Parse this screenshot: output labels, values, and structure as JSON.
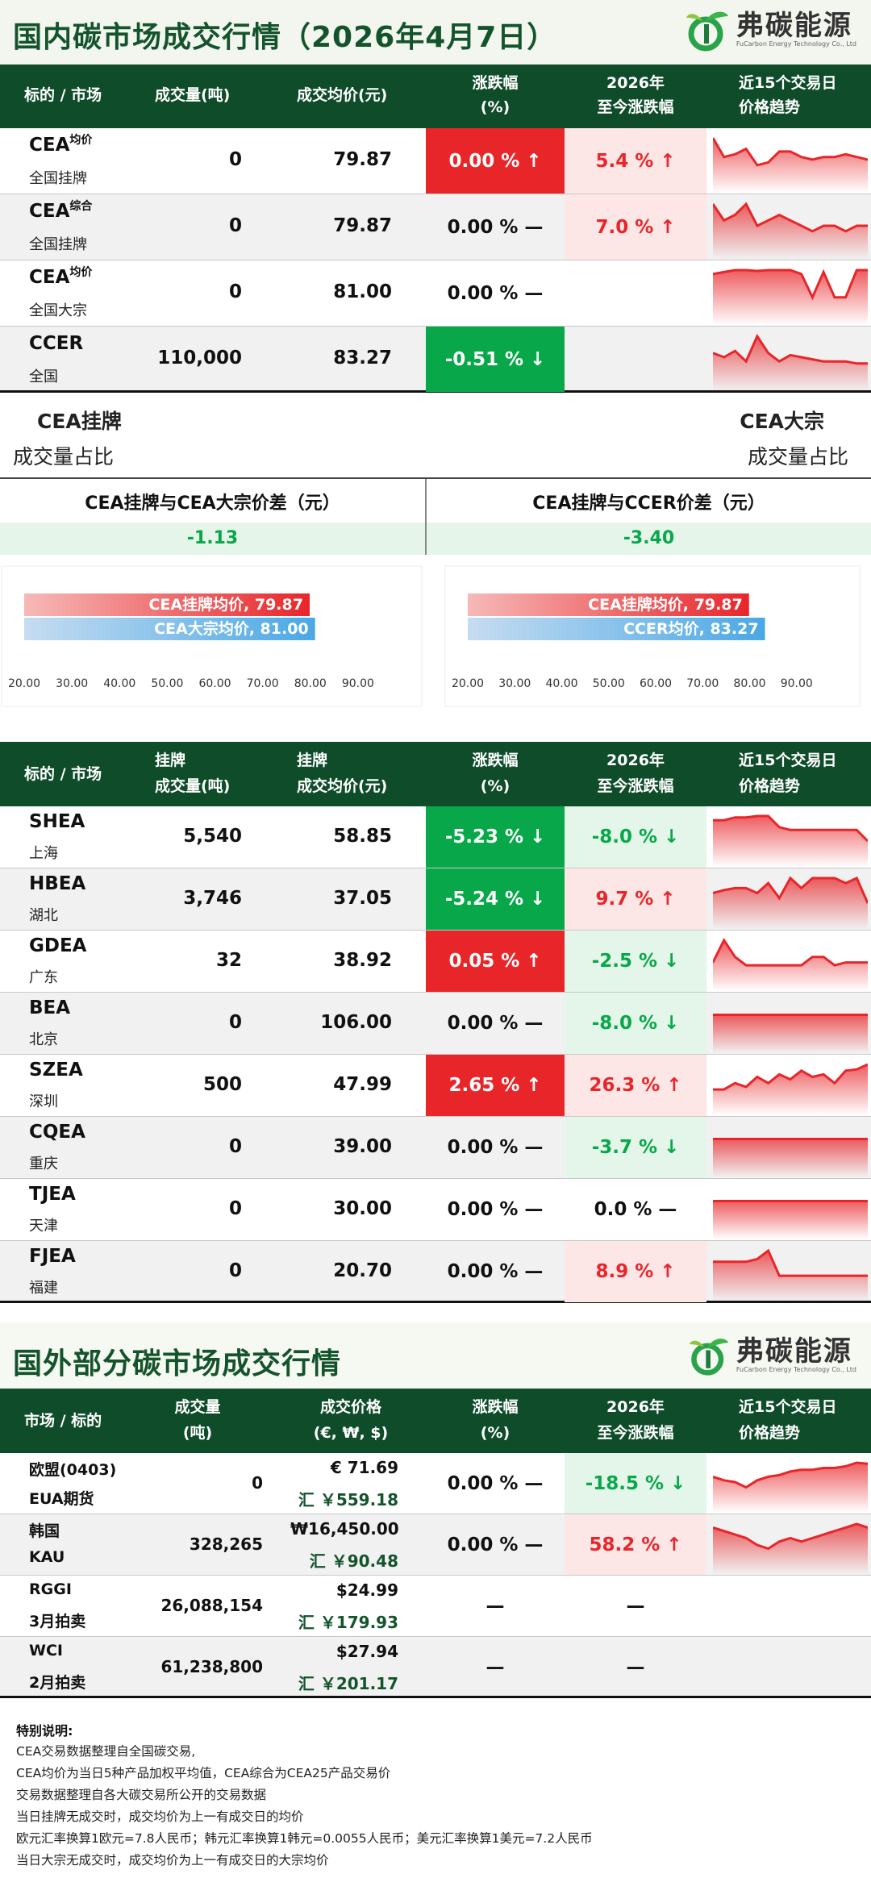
{
  "domestic": {
    "title": "国内碳市场成交行情（2026年4月7日）",
    "logo_name": "弗碳能源",
    "logo_sub": "FuCarbon Energy Technology Co., Ltd",
    "header": [
      "标的 / 市场",
      "成交量(吨)",
      "成交均价(元)",
      "涨跌幅",
      "(%)",
      "2026年",
      "至今涨跌幅",
      "近15个交易日",
      "价格趋势"
    ],
    "rows": [
      {
        "code": "CEA",
        "sup": "均价",
        "sub": "全国挂牌",
        "volume": "0",
        "price": "79.87",
        "change": "0.00 % ↑",
        "change_style": "red",
        "ytd": "5.4 % ↑",
        "ytd_style": "pink",
        "spark": [
          62,
          55,
          56,
          58,
          52,
          53,
          57,
          57,
          55,
          54,
          55,
          55,
          56,
          55,
          54
        ]
      },
      {
        "code": "CEA",
        "sup": "综合",
        "sub": "全国挂牌",
        "volume": "0",
        "price": "79.87",
        "change": "0.00 % —",
        "change_style": "none",
        "ytd": "7.0 % ↑",
        "ytd_style": "pink",
        "spark": [
          60,
          57,
          58,
          60,
          56,
          57,
          58,
          57,
          56,
          55,
          56,
          56,
          55,
          56,
          56
        ]
      },
      {
        "code": "CEA",
        "sup": "均价",
        "sub": "全国大宗",
        "volume": "0",
        "price": "81.00",
        "change": "0.00 % —",
        "change_style": "none",
        "ytd": "",
        "ytd_style": "none",
        "spark": [
          80,
          80.5,
          81,
          81,
          80.8,
          81,
          81,
          81,
          80,
          74,
          80.5,
          74,
          74,
          81,
          81
        ]
      },
      {
        "code": "CCER",
        "sup": "",
        "sub": "全国",
        "volume": "110,000",
        "price": "83.27",
        "change": "-0.51 % ↓",
        "change_style": "green",
        "ytd": "",
        "ytd_style": "none",
        "spark": [
          62,
          60,
          63,
          58,
          70,
          62,
          58,
          61,
          60,
          59,
          58,
          58,
          58,
          57,
          57
        ]
      }
    ],
    "listed_share_label": "CEA挂牌",
    "listed_share_sub": "成交量占比",
    "block_share_label": "CEA大宗",
    "block_share_sub": "成交量占比",
    "spread1_label": "CEA挂牌与CEA大宗价差（元）",
    "spread1_value": "-1.13",
    "spread2_label": "CEA挂牌与CCER价差（元）",
    "spread2_value": "-3.40"
  },
  "chart_data": [
    {
      "type": "bar",
      "orientation": "horizontal",
      "categories": [
        "CEA挂牌均价",
        "CEA大宗均价"
      ],
      "values": [
        79.87,
        81.0
      ],
      "bar_labels": [
        "CEA挂牌均价, 79.87",
        "CEA大宗均价, 81.00"
      ],
      "colors": [
        "#e8262a",
        "#4aa8e6"
      ],
      "xlim": [
        20,
        100
      ],
      "ticks": [
        "20.00",
        "30.00",
        "40.00",
        "50.00",
        "60.00",
        "70.00",
        "80.00",
        "90.00"
      ],
      "grid": false
    },
    {
      "type": "bar",
      "orientation": "horizontal",
      "categories": [
        "CEA挂牌均价",
        "CCER均价"
      ],
      "values": [
        79.87,
        83.27
      ],
      "bar_labels": [
        "CEA挂牌均价, 79.87",
        "CCER均价, 83.27"
      ],
      "colors": [
        "#e8262a",
        "#4aa8e6"
      ],
      "xlim": [
        20,
        100
      ],
      "ticks": [
        "20.00",
        "30.00",
        "40.00",
        "50.00",
        "60.00",
        "70.00",
        "80.00",
        "90.00"
      ],
      "grid": false
    }
  ],
  "pilot": {
    "header": [
      "标的 / 市场",
      "挂牌",
      "成交量(吨)",
      "挂牌",
      "成交均价(元)",
      "涨跌幅",
      "(%)",
      "2026年",
      "至今涨跌幅",
      "近15个交易日",
      "价格趋势"
    ],
    "rows": [
      {
        "code": "SHEA",
        "sub": "上海",
        "volume": "5,540",
        "price": "58.85",
        "change": "-5.23 % ↓",
        "change_style": "green",
        "ytd": "-8.0 % ↓",
        "ytd_style": "mint",
        "spark": [
          63,
          63,
          63.2,
          63.2,
          63.3,
          63.3,
          62.5,
          62.3,
          62.3,
          62.3,
          62.3,
          62.3,
          62.3,
          62.3,
          61.5
        ]
      },
      {
        "code": "HBEA",
        "sub": "湖北",
        "volume": "3,746",
        "price": "37.05",
        "change": "-5.24 % ↓",
        "change_style": "green",
        "ytd": "9.7 % ↑",
        "ytd_style": "pink",
        "spark": [
          38,
          38.3,
          38.5,
          38.5,
          38,
          39,
          37.5,
          39.5,
          38.5,
          39.5,
          39.5,
          39.5,
          39,
          39.5,
          37
        ]
      },
      {
        "code": "GDEA",
        "sub": "广东",
        "volume": "32",
        "price": "38.92",
        "change": "0.05 % ↑",
        "change_style": "red",
        "ytd": "-2.5 % ↓",
        "ytd_style": "mint",
        "spark": [
          39,
          39.8,
          39.2,
          38.9,
          38.9,
          38.9,
          38.9,
          38.9,
          38.9,
          39.2,
          39.2,
          38.9,
          39,
          39,
          39
        ]
      },
      {
        "code": "BEA",
        "sub": "北京",
        "volume": "0",
        "price": "106.00",
        "change": "0.00 % —",
        "change_style": "none",
        "ytd": "-8.0 % ↓",
        "ytd_style": "mint",
        "spark": [
          106,
          106,
          106,
          106,
          106,
          106,
          106,
          106,
          106,
          106,
          106,
          106,
          106,
          106,
          106
        ]
      },
      {
        "code": "SZEA",
        "sub": "深圳",
        "volume": "500",
        "price": "47.99",
        "change": "2.65 % ↑",
        "change_style": "red",
        "ytd": "26.3 % ↑",
        "ytd_style": "pink",
        "spark": [
          46,
          46,
          46.5,
          46.2,
          47,
          46.5,
          47.2,
          46.8,
          47.5,
          47,
          47.2,
          46.5,
          47.5,
          47.6,
          48
        ]
      },
      {
        "code": "CQEA",
        "sub": "重庆",
        "volume": "0",
        "price": "39.00",
        "change": "0.00 % —",
        "change_style": "none",
        "ytd": "-3.7 % ↓",
        "ytd_style": "mint",
        "spark": [
          39,
          39,
          39,
          39,
          39,
          39,
          39,
          39,
          39,
          39,
          39,
          39,
          39,
          39,
          39
        ]
      },
      {
        "code": "TJEA",
        "sub": "天津",
        "volume": "0",
        "price": "30.00",
        "change": "0.00 % —",
        "change_style": "none",
        "ytd": "0.0 % —",
        "ytd_style": "black",
        "spark": [
          30,
          30,
          30,
          30,
          30,
          30,
          30,
          30,
          30,
          30,
          30,
          30,
          30,
          30,
          30
        ]
      },
      {
        "code": "FJEA",
        "sub": "福建",
        "volume": "0",
        "price": "20.70",
        "change": "0.00 % —",
        "change_style": "none",
        "ytd": "8.9 % ↑",
        "ytd_style": "pink",
        "spark": [
          21.2,
          21.2,
          21.2,
          21.2,
          21.3,
          21.6,
          20.7,
          20.7,
          20.7,
          20.7,
          20.7,
          20.7,
          20.7,
          20.7,
          20.7
        ]
      }
    ]
  },
  "foreign": {
    "title": "国外部分碳市场成交行情",
    "logo_name": "弗碳能源",
    "logo_sub": "FuCarbon Energy Technology Co., Ltd",
    "header": [
      "市场 / 标的",
      "成交量",
      "(吨)",
      "成交价格",
      "(€, ₩, $)",
      "涨跌幅",
      "(%)",
      "2026年",
      "至今涨跌幅",
      "近15个交易日",
      "价格趋势"
    ],
    "rows": [
      {
        "market": "欧盟(0403)",
        "product": "EUA期货",
        "volume": "0",
        "price": "€ 71.69",
        "rmb": "汇 ￥559.18",
        "change": "0.00 % —",
        "ytd": "-18.5 % ↓",
        "ytd_style": "mint",
        "spark": [
          68,
          67,
          66.5,
          65,
          67,
          68,
          68.5,
          69.5,
          70,
          70,
          70.5,
          70.5,
          71,
          72,
          71.7
        ]
      },
      {
        "market": "韩国",
        "product": "KAU",
        "volume": "328,265",
        "price": "₩16,450.00",
        "rmb": "汇 ￥90.48",
        "change": "0.00 % —",
        "ytd": "58.2 % ↑",
        "ytd_style": "pink",
        "spark": [
          16450,
          16400,
          16350,
          16300,
          16200,
          16150,
          16250,
          16300,
          16250,
          16300,
          16350,
          16400,
          16450,
          16500,
          16450
        ]
      },
      {
        "market": "RGGI",
        "product": "3月拍卖",
        "volume": "26,088,154",
        "price": "$24.99",
        "rmb": "汇 ￥179.93",
        "change": "—",
        "ytd": "—",
        "ytd_style": "black",
        "spark": []
      },
      {
        "market": "WCI",
        "product": "2月拍卖",
        "volume": "61,238,800",
        "price": "$27.94",
        "rmb": "汇 ￥201.17",
        "change": "—",
        "ytd": "—",
        "ytd_style": "black",
        "spark": []
      }
    ]
  },
  "notes": {
    "title": "特别说明:",
    "lines": [
      "CEA交易数据整理自全国碳交易,",
      "CEA均价为当日5种产品加权平均值，CEA综合为CEA25产品交易价",
      "交易数据整理自各大碳交易所公开的交易数据",
      "当日挂牌无成交时，成交均价为上一有成交日的均价",
      "欧元汇率换算1欧元=7.8人民币；韩元汇率换算1韩元=0.0055人民币；美元汇率换算1美元=7.2人民币",
      "当日大宗无成交时，成交均价为上一有成交日的大宗均价"
    ]
  },
  "colors": {
    "red": "#e8262a",
    "green": "#08a84a",
    "header": "#0f4c2a",
    "title": "#14542c",
    "pink": "#fde6e6",
    "mint": "#e4f5e9"
  }
}
